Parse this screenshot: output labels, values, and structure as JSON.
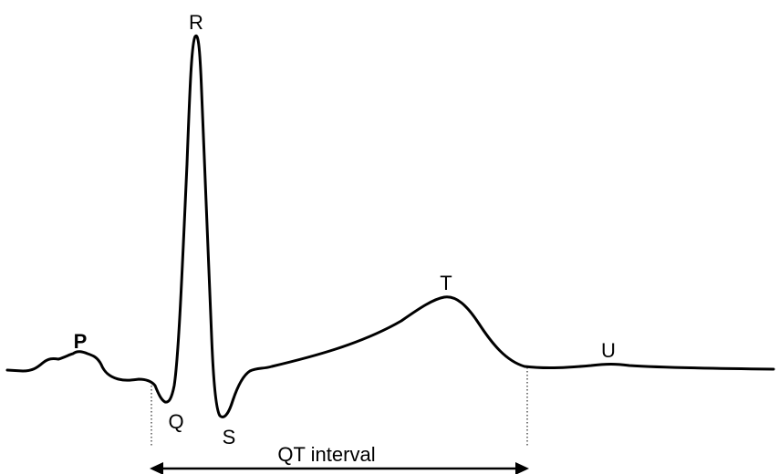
{
  "waves": {
    "p": "P",
    "q": "Q",
    "r": "R",
    "s": "S",
    "t": "T",
    "u": "U"
  },
  "interval": {
    "label": "QT interval"
  },
  "colors": {
    "line": "#000000",
    "background": "#ffffff"
  }
}
